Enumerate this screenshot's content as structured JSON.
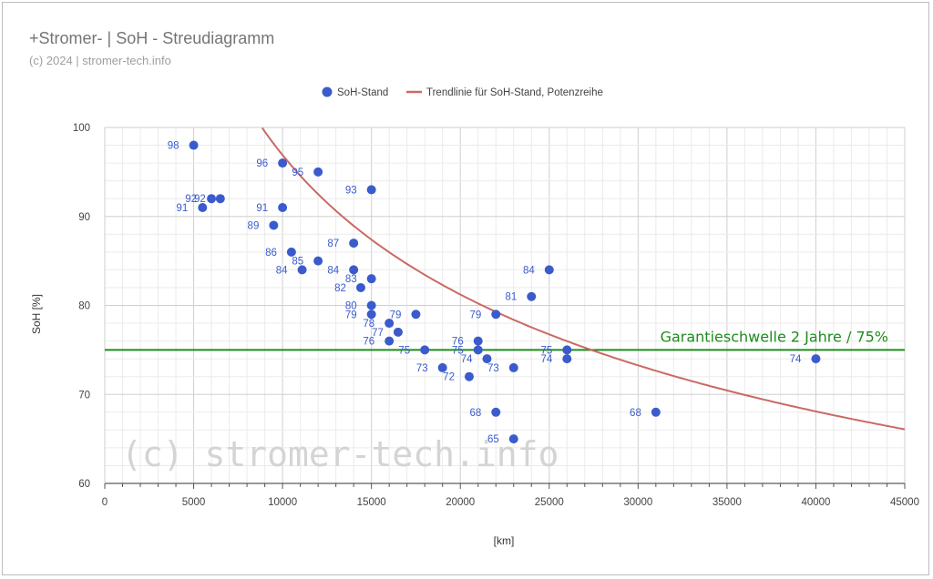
{
  "title": "+Stromer- | SoH - Streudiagramm",
  "subtitle": "(c) 2024 | stromer-tech.info",
  "watermark": "(c) stromer-tech.info",
  "colors": {
    "points": "#3b5bcc",
    "trend": "#c96a64",
    "threshold": "#1e8c1e",
    "watermark": "#d4d4d4"
  },
  "chart_data": {
    "type": "scatter",
    "xlabel": "[km]",
    "ylabel": "SoH [%]",
    "xlim": [
      0,
      45000
    ],
    "ylim": [
      60,
      100
    ],
    "xticks": [
      "0",
      "5000",
      "10000",
      "15000",
      "20000",
      "25000",
      "30000",
      "35000",
      "40000",
      "45000"
    ],
    "yticks": [
      "60",
      "70",
      "80",
      "90",
      "100"
    ],
    "grid": true,
    "legend_position": "top-center",
    "series": [
      {
        "name": "SoH-Stand",
        "points": [
          {
            "x": 5000,
            "y": 98,
            "label": "98"
          },
          {
            "x": 10000,
            "y": 96,
            "label": "96"
          },
          {
            "x": 12000,
            "y": 95,
            "label": "95"
          },
          {
            "x": 15000,
            "y": 93,
            "label": "93"
          },
          {
            "x": 6000,
            "y": 92,
            "label": "92"
          },
          {
            "x": 6500,
            "y": 92,
            "label": "92"
          },
          {
            "x": 5500,
            "y": 91,
            "label": "91"
          },
          {
            "x": 10000,
            "y": 91,
            "label": "91"
          },
          {
            "x": 9500,
            "y": 89,
            "label": "89"
          },
          {
            "x": 14000,
            "y": 87,
            "label": "87"
          },
          {
            "x": 10500,
            "y": 86,
            "label": "86"
          },
          {
            "x": 12000,
            "y": 85,
            "label": "85"
          },
          {
            "x": 11100,
            "y": 84,
            "label": "84"
          },
          {
            "x": 14000,
            "y": 84,
            "label": "84"
          },
          {
            "x": 15000,
            "y": 83,
            "label": "83"
          },
          {
            "x": 14400,
            "y": 82,
            "label": "82"
          },
          {
            "x": 25000,
            "y": 84,
            "label": "84"
          },
          {
            "x": 24000,
            "y": 81,
            "label": "81"
          },
          {
            "x": 15000,
            "y": 80,
            "label": "80"
          },
          {
            "x": 15000,
            "y": 79,
            "label": "79"
          },
          {
            "x": 17500,
            "y": 79,
            "label": "79"
          },
          {
            "x": 22000,
            "y": 79,
            "label": "79"
          },
          {
            "x": 16000,
            "y": 78,
            "label": "78"
          },
          {
            "x": 16500,
            "y": 77,
            "label": "77"
          },
          {
            "x": 16000,
            "y": 76,
            "label": "76"
          },
          {
            "x": 21000,
            "y": 76,
            "label": "76"
          },
          {
            "x": 18000,
            "y": 75,
            "label": "75"
          },
          {
            "x": 21000,
            "y": 75,
            "label": "75"
          },
          {
            "x": 26000,
            "y": 75,
            "label": "75"
          },
          {
            "x": 21500,
            "y": 74,
            "label": "74"
          },
          {
            "x": 26000,
            "y": 74,
            "label": "74"
          },
          {
            "x": 40000,
            "y": 74,
            "label": "74"
          },
          {
            "x": 19000,
            "y": 73,
            "label": "73"
          },
          {
            "x": 23000,
            "y": 73,
            "label": "73"
          },
          {
            "x": 20500,
            "y": 72,
            "label": "72"
          },
          {
            "x": 22000,
            "y": 68,
            "label": "68"
          },
          {
            "x": 31000,
            "y": 68,
            "label": "68"
          },
          {
            "x": 23000,
            "y": 65,
            "label": "65"
          }
        ]
      },
      {
        "name": "Trendlinie für SoH-Stand,  Potenzreihe",
        "type": "line",
        "trend": {
          "a": 1010,
          "b": -0.2545
        }
      }
    ],
    "annotations": [
      {
        "text": "Garantieschwelle 2 Jahre / 75%",
        "y": 75
      }
    ]
  }
}
